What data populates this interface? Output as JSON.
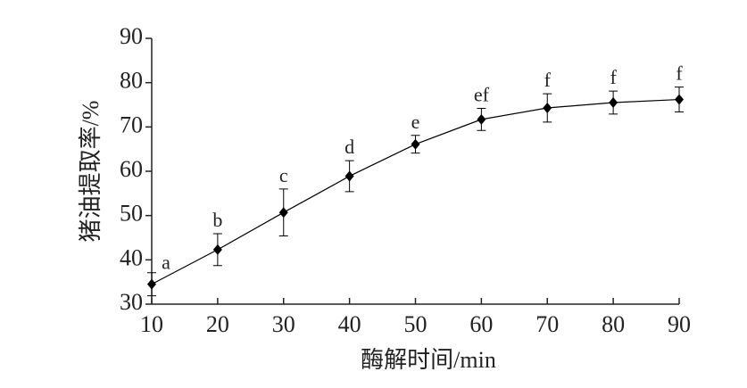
{
  "chart_data": {
    "type": "line",
    "x_label": "酶解时间/min",
    "y_label": "猪油提取率/%",
    "x": [
      10,
      20,
      30,
      40,
      50,
      60,
      70,
      80,
      90
    ],
    "series": [
      {
        "color": "#000000",
        "values": [
          34.5,
          42.3,
          50.7,
          58.9,
          66.1,
          71.7,
          74.3,
          75.5,
          76.2
        ],
        "errors": [
          2.6,
          3.6,
          5.3,
          3.5,
          2.0,
          2.5,
          3.2,
          2.6,
          2.8
        ],
        "significance_labels": [
          "a",
          "b",
          "c",
          "d",
          "e",
          "ef",
          "f",
          "f",
          "f"
        ]
      }
    ],
    "xlim": [
      10,
      90
    ],
    "xticks": [
      10,
      20,
      30,
      40,
      50,
      60,
      70,
      80,
      90
    ],
    "ylim": [
      30,
      90
    ],
    "yticks": [
      30,
      40,
      50,
      60,
      70,
      80,
      90
    ],
    "grid": false
  }
}
